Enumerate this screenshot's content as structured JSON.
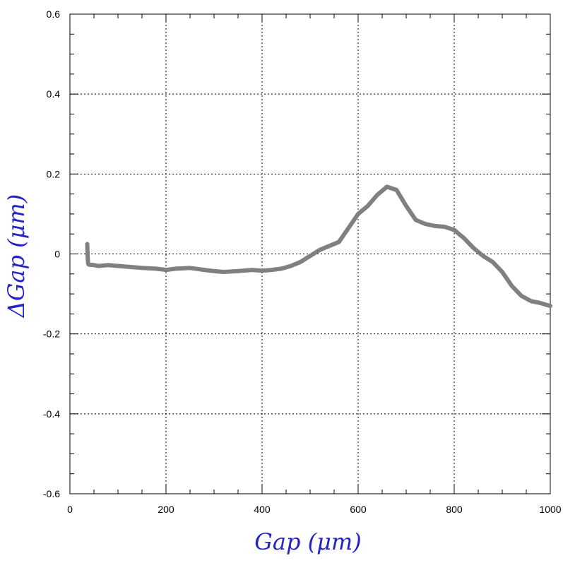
{
  "chart_data": {
    "type": "line",
    "title": "",
    "xlabel": "Gap  (μm)",
    "ylabel": "ΔGap (μm)",
    "xlim": [
      0,
      1000
    ],
    "ylim": [
      -0.6,
      0.6
    ],
    "x_ticks": [
      0,
      200,
      400,
      600,
      800,
      1000
    ],
    "x_tick_labels": [
      "0",
      "200",
      "400",
      "600",
      "800",
      "1000"
    ],
    "y_ticks": [
      -0.6,
      -0.4,
      -0.2,
      0,
      0.2,
      0.4,
      0.6
    ],
    "y_tick_labels": [
      "-0.6",
      "-0.4",
      "-0.2",
      "0",
      "0.2",
      "0.4",
      "0.6"
    ],
    "grid": true,
    "series": [
      {
        "color": "#808080",
        "x": [
          36,
          37,
          38,
          40,
          50,
          60,
          80,
          100,
          120,
          150,
          180,
          200,
          220,
          250,
          280,
          300,
          320,
          350,
          380,
          400,
          420,
          440,
          460,
          480,
          500,
          520,
          540,
          560,
          580,
          600,
          620,
          640,
          660,
          680,
          700,
          720,
          740,
          760,
          780,
          800,
          820,
          840,
          860,
          880,
          900,
          920,
          940,
          960,
          980,
          1000
        ],
        "y": [
          0.025,
          -0.01,
          -0.025,
          -0.027,
          -0.028,
          -0.03,
          -0.028,
          -0.03,
          -0.032,
          -0.035,
          -0.037,
          -0.04,
          -0.037,
          -0.035,
          -0.04,
          -0.043,
          -0.045,
          -0.043,
          -0.04,
          -0.042,
          -0.04,
          -0.037,
          -0.03,
          -0.02,
          -0.005,
          0.01,
          0.02,
          0.03,
          0.065,
          0.1,
          0.12,
          0.148,
          0.168,
          0.16,
          0.12,
          0.085,
          0.075,
          0.07,
          0.068,
          0.06,
          0.04,
          0.015,
          -0.005,
          -0.02,
          -0.045,
          -0.08,
          -0.105,
          -0.118,
          -0.123,
          -0.13
        ]
      }
    ]
  }
}
